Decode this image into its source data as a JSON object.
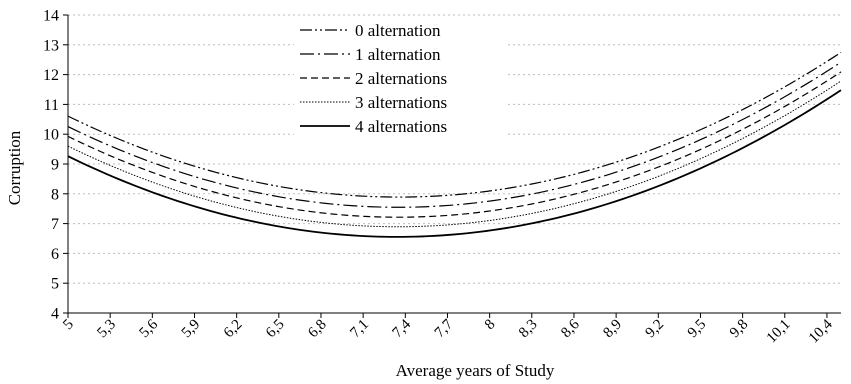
{
  "chart_data": {
    "type": "line",
    "xlabel": "Average years of Study",
    "ylabel": "Corruption",
    "ylim": [
      4,
      14
    ],
    "yticks": [
      4,
      5,
      6,
      7,
      8,
      9,
      10,
      11,
      12,
      13,
      14
    ],
    "xlim": [
      5,
      10.5
    ],
    "xticks": [
      5,
      5.3,
      5.6,
      5.9,
      6.2,
      6.5,
      6.8,
      7.1,
      7.4,
      7.7,
      8,
      8.3,
      8.6,
      8.9,
      9.2,
      9.5,
      9.8,
      10.1,
      10.4
    ],
    "xtick_labels": [
      "5",
      "5,3",
      "5,6",
      "5,9",
      "6,2",
      "6,5",
      "6,8",
      "7,1",
      "7,4",
      "7,7",
      "8",
      "8,3",
      "8,6",
      "8,9",
      "9,2",
      "9,5",
      "9,8",
      "10,1",
      "10,4"
    ],
    "grid": "horizontal dotted",
    "legend_position": "top-center",
    "series": [
      {
        "name": "0 alternation",
        "style": "dash-dot-dot",
        "x": [
          5,
          5.5,
          6,
          6.5,
          7,
          7.3,
          7.5,
          8,
          8.5,
          9,
          9.5,
          10,
          10.5
        ],
        "y": [
          10.48,
          9.62,
          8.89,
          8.33,
          7.97,
          7.87,
          7.88,
          8.06,
          8.49,
          9.18,
          10.13,
          11.33,
          12.8
        ]
      },
      {
        "name": "1 alternation",
        "style": "long-dash-dot",
        "x": [
          5,
          5.5,
          6,
          6.5,
          7,
          7.3,
          7.5,
          8,
          8.5,
          9,
          9.5,
          10,
          10.5
        ],
        "y": [
          10.13,
          9.27,
          8.55,
          7.98,
          7.62,
          7.53,
          7.54,
          7.72,
          8.16,
          8.84,
          9.79,
          11.0,
          12.47
        ]
      },
      {
        "name": "2 alternations",
        "style": "dashed",
        "x": [
          5,
          5.5,
          6,
          6.5,
          7,
          7.3,
          7.5,
          8,
          8.5,
          9,
          9.5,
          10,
          10.5
        ],
        "y": [
          9.8,
          8.94,
          8.21,
          7.65,
          7.29,
          7.2,
          7.21,
          7.39,
          7.82,
          8.51,
          9.46,
          10.67,
          12.15
        ]
      },
      {
        "name": "3 alternations",
        "style": "dotted",
        "x": [
          5,
          5.5,
          6,
          6.5,
          7,
          7.3,
          7.5,
          8,
          8.5,
          9,
          9.5,
          10,
          10.5
        ],
        "y": [
          9.47,
          8.61,
          7.89,
          7.33,
          6.97,
          6.88,
          6.89,
          7.07,
          7.5,
          8.19,
          9.15,
          10.36,
          11.85
        ]
      },
      {
        "name": "4 alternations",
        "style": "solid",
        "x": [
          5,
          5.5,
          6,
          6.5,
          7,
          7.3,
          7.5,
          8,
          8.5,
          9,
          9.5,
          10,
          10.5
        ],
        "y": [
          9.13,
          8.27,
          7.55,
          6.99,
          6.63,
          6.54,
          6.55,
          6.74,
          7.17,
          7.86,
          8.82,
          10.04,
          11.55
        ]
      }
    ],
    "colors": {
      "line": "#000000",
      "grid": "#bdbdbd",
      "axis": "#000000"
    }
  }
}
